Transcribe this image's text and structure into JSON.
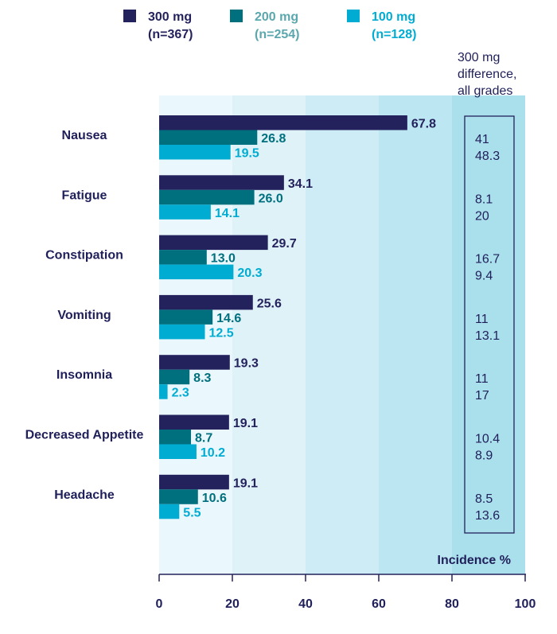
{
  "chart_data": {
    "type": "bar",
    "orientation": "horizontal",
    "categories": [
      "Nausea",
      "Fatigue",
      "Constipation",
      "Vomiting",
      "Insomnia",
      "Decreased Appetite",
      "Headache"
    ],
    "series": [
      {
        "name": "300 mg",
        "n_label": "(n=367)",
        "color": "#24225c",
        "label_color": "#24225c",
        "values": [
          67.8,
          34.1,
          29.7,
          25.6,
          19.3,
          19.1,
          19.1
        ]
      },
      {
        "name": "200 mg",
        "n_label": "(n=254)",
        "color": "#00707e",
        "label_color": "#00707e",
        "legend_text_color": "#5aa7ad",
        "values": [
          26.8,
          26.0,
          13.0,
          14.6,
          8.3,
          8.7,
          10.6
        ]
      },
      {
        "name": "100 mg",
        "n_label": "(n=128)",
        "color": "#00acd2",
        "label_color": "#00acd2",
        "values": [
          19.5,
          14.1,
          20.3,
          12.5,
          2.3,
          10.2,
          5.5
        ]
      }
    ],
    "difference": {
      "header": [
        "300 mg",
        "difference,",
        "all grades"
      ],
      "values": [
        [
          "41",
          "48.3"
        ],
        [
          "8.1",
          "20"
        ],
        [
          "16.7",
          "9.4"
        ],
        [
          "11",
          "13.1"
        ],
        [
          "11",
          "17"
        ],
        [
          "10.4",
          "8.9"
        ],
        [
          "8.5",
          "13.6"
        ]
      ]
    },
    "xlim": [
      0,
      100
    ],
    "xticks": [
      0,
      20,
      40,
      60,
      80,
      100
    ],
    "xlabel": "Incidence %",
    "legend_position": "top",
    "background_bands": [
      "#eaf7fc",
      "#dff2f8",
      "#cdecf5",
      "#bce6f1",
      "#aadfec"
    ]
  }
}
